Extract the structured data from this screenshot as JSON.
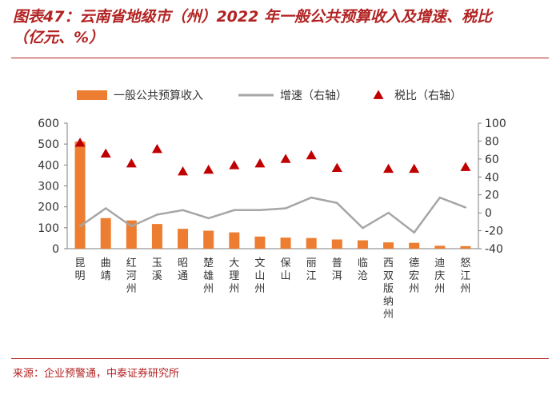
{
  "title_line1": "图表47：云南省地级市（州）2022 年一般公共预算收入及增速、税比",
  "title_line2": "（亿元、%）",
  "source": "来源：企业预警通，中泰证券研究所",
  "colors": {
    "bar": "#ed7d31",
    "line": "#a6a6a6",
    "marker": "#c00000",
    "accent": "#b22222"
  },
  "chart_data": {
    "type": "bar",
    "categories": [
      "昆明",
      "曲靖",
      "红河州",
      "玉溪",
      "昭通",
      "楚雄州",
      "大理州",
      "文山州",
      "保山",
      "丽江",
      "普洱",
      "临沧",
      "西双版纳州",
      "德宏州",
      "迪庆州",
      "怒江州"
    ],
    "series": [
      {
        "name": "一般公共预算收入",
        "axis": "left",
        "kind": "bar",
        "values": [
          512,
          146,
          135,
          118,
          95,
          86,
          78,
          58,
          53,
          51,
          44,
          40,
          30,
          28,
          14,
          12
        ]
      },
      {
        "name": "增速（右轴）",
        "axis": "right",
        "kind": "line",
        "values": [
          -15,
          5,
          -15,
          -2,
          3,
          -6,
          3,
          3,
          5,
          17,
          11,
          -17,
          0,
          -22,
          17,
          6
        ]
      },
      {
        "name": "税比（右轴）",
        "axis": "right",
        "kind": "marker",
        "values": [
          78,
          66,
          55,
          71,
          46,
          48,
          53,
          55,
          60,
          64,
          50,
          null,
          49,
          49,
          null,
          51
        ]
      }
    ],
    "yleft": {
      "min": 0,
      "max": 600,
      "ticks": [
        0,
        100,
        200,
        300,
        400,
        500,
        600
      ]
    },
    "yright": {
      "min": -40,
      "max": 100,
      "ticks": [
        -40,
        -20,
        0,
        20,
        40,
        60,
        80,
        100
      ]
    },
    "legend_position": "top"
  }
}
